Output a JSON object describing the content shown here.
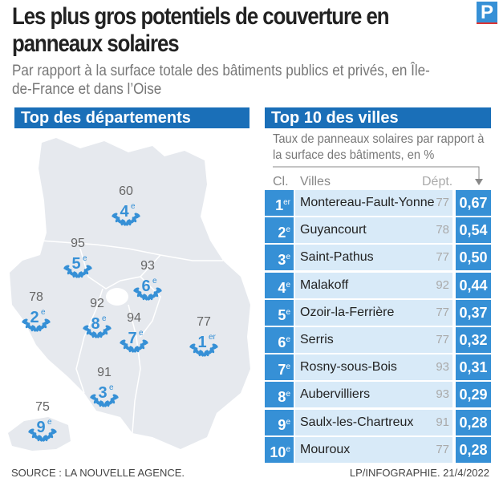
{
  "title": "Les plus gros potentiels de couverture en panneaux solaires",
  "subtitle": "Par rapport à la surface totale des bâtiments publics et privés, en Île-de-France et dans l’Oise",
  "logo": "P",
  "colors": {
    "accent": "#3690d6",
    "header": "#1a6fb8",
    "row_bg": "#d8eaf8",
    "map": "#e6e9ee"
  },
  "departements": {
    "header": "Top des départements",
    "items": [
      {
        "dept": "77",
        "rank": "1",
        "sup": "er"
      },
      {
        "dept": "78",
        "rank": "2",
        "sup": "e"
      },
      {
        "dept": "91",
        "rank": "3",
        "sup": "e"
      },
      {
        "dept": "60",
        "rank": "4",
        "sup": "e"
      },
      {
        "dept": "95",
        "rank": "5",
        "sup": "e"
      },
      {
        "dept": "93",
        "rank": "6",
        "sup": "e"
      },
      {
        "dept": "94",
        "rank": "7",
        "sup": "e"
      },
      {
        "dept": "92",
        "rank": "8",
        "sup": "e"
      },
      {
        "dept": "75",
        "rank": "9",
        "sup": "e"
      }
    ]
  },
  "villes": {
    "header": "Top 10 des villes",
    "note": "Taux de panneaux solaires par rapport à la surface des bâtiments, en %",
    "col_rank": "Cl.",
    "col_city": "Villes",
    "col_dept": "Dépt."
  },
  "chart_data": {
    "type": "table",
    "columns": [
      "Cl.",
      "Villes",
      "Dépt.",
      "Taux (%)"
    ],
    "rows": [
      {
        "rank": "1",
        "sup": "er",
        "city": "Montereau-Fault-Yonne",
        "dept": "77",
        "value": "0,67"
      },
      {
        "rank": "2",
        "sup": "e",
        "city": "Guyancourt",
        "dept": "78",
        "value": "0,54"
      },
      {
        "rank": "3",
        "sup": "e",
        "city": "Saint-Pathus",
        "dept": "77",
        "value": "0,50"
      },
      {
        "rank": "4",
        "sup": "e",
        "city": "Malakoff",
        "dept": "92",
        "value": "0,44"
      },
      {
        "rank": "5",
        "sup": "e",
        "city": "Ozoir-la-Ferrière",
        "dept": "77",
        "value": "0,37"
      },
      {
        "rank": "6",
        "sup": "e",
        "city": "Serris",
        "dept": "77",
        "value": "0,32"
      },
      {
        "rank": "7",
        "sup": "e",
        "city": "Rosny-sous-Bois",
        "dept": "93",
        "value": "0,31"
      },
      {
        "rank": "8",
        "sup": "e",
        "city": "Aubervilliers",
        "dept": "93",
        "value": "0,29"
      },
      {
        "rank": "9",
        "sup": "e",
        "city": "Saulx-les-Chartreux",
        "dept": "91",
        "value": "0,28"
      },
      {
        "rank": "10",
        "sup": "e",
        "city": "Mouroux",
        "dept": "77",
        "value": "0,28"
      }
    ]
  },
  "footer": {
    "source": "SOURCE : LA NOUVELLE AGENCE.",
    "credit": "LP/INFOGRAPHIE. 21/4/2022"
  }
}
